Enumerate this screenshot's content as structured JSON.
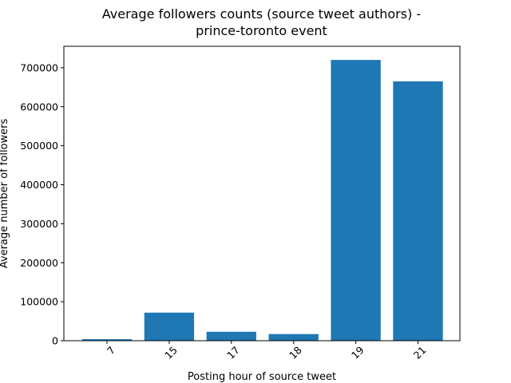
{
  "chart_data": {
    "type": "bar",
    "title_lines": [
      "Average followers counts (source tweet authors) -",
      "prince-toronto event"
    ],
    "xlabel": "Posting hour of source tweet",
    "ylabel": "Average number of followers",
    "categories": [
      "7",
      "15",
      "17",
      "18",
      "19",
      "21"
    ],
    "values": [
      4000,
      72000,
      23000,
      17000,
      720000,
      665000
    ],
    "ylim": [
      0,
      755000
    ],
    "yticks": [
      0,
      100000,
      200000,
      300000,
      400000,
      500000,
      600000,
      700000
    ],
    "ytick_labels": [
      "0",
      "100000",
      "200000",
      "300000",
      "400000",
      "500000",
      "600000",
      "700000"
    ],
    "bar_color": "#1f77b4",
    "xtick_rotation_deg": 45,
    "grid": false,
    "legend": "none"
  }
}
